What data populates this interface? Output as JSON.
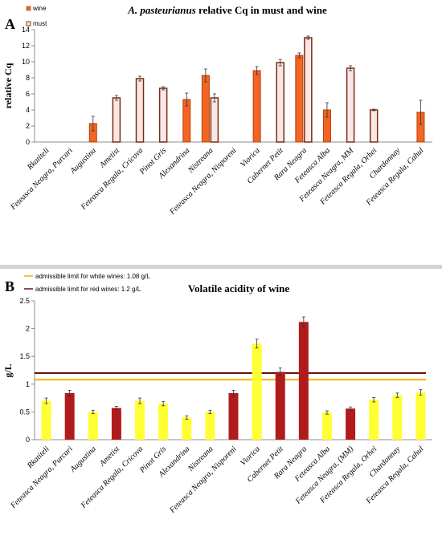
{
  "colors": {
    "wine": "#f26522",
    "wine_edge": "#b5400c",
    "must": "#fbe6ea",
    "must_edge": "#7a2e0e",
    "white_wine_bar": "#ffff33",
    "red_wine_bar": "#b01c1c",
    "white_limit": "#f0b400",
    "red_limit": "#6a1010",
    "axis": "#8c8c8c"
  },
  "chart_data": [
    {
      "panel_label": "A",
      "type": "bar",
      "title_italic": "A. pasteurianus",
      "title_rest": " relative Cq in must and wine",
      "ylabel": "relative Cq",
      "ylim": [
        0,
        14
      ],
      "yticks": [
        "0",
        "2",
        "4",
        "6",
        "8",
        "10",
        "12",
        "14"
      ],
      "legend": {
        "placement": "top-left",
        "wine": "wine",
        "must": "must"
      },
      "categories": [
        "Rkatiteli",
        "Feteasca Neagra, Purcari",
        "Augustina",
        "Ametist",
        "Feteasca Regala, Cricova",
        "Pinot Gris",
        "Alexandrina",
        "Nistreana",
        "Feteasca Neagra, Nisporeni",
        "Viorica",
        "Cabernet Petit",
        "Rara Neagra",
        "Feteasca Alba",
        "Feteasca Neagra, MM",
        "Feteasca Regala, Orhei",
        "Chardonnay",
        "Feteasca Regala, Cahul"
      ],
      "series": [
        {
          "name": "wine",
          "values": [
            null,
            null,
            2.3,
            null,
            null,
            null,
            5.3,
            8.3,
            null,
            8.9,
            null,
            10.8,
            4.0,
            null,
            null,
            null,
            3.7
          ],
          "errors": [
            null,
            null,
            0.9,
            null,
            null,
            null,
            0.8,
            0.8,
            null,
            0.5,
            null,
            0.3,
            0.9,
            null,
            null,
            null,
            1.5
          ]
        },
        {
          "name": "must",
          "values": [
            null,
            null,
            null,
            5.5,
            7.9,
            6.7,
            null,
            5.5,
            null,
            null,
            9.9,
            13.0,
            null,
            9.2,
            4.0,
            null,
            null
          ],
          "errors": [
            null,
            null,
            null,
            0.3,
            0.3,
            0.2,
            null,
            0.5,
            null,
            null,
            0.4,
            0.2,
            null,
            0.3,
            0.1,
            null,
            null
          ]
        }
      ]
    },
    {
      "panel_label": "B",
      "type": "bar",
      "title": "Volatile acidity of wine",
      "ylabel": "g/L",
      "ylim": [
        0,
        2.5
      ],
      "yticks": [
        "0",
        "0.5",
        "1",
        "1.5",
        "2",
        "2.5"
      ],
      "legend": {
        "placement": "top-left",
        "white_limit": "admissible limit for white wines: 1.08 g/L",
        "red_limit": "admissible limit for red wines: 1.2 g/L"
      },
      "limits": {
        "white": 1.08,
        "red": 1.2
      },
      "categories": [
        "Rkatiteli",
        "Feteasca Neagra, Purcari",
        "Augustina",
        "Ametist",
        "Feteasca Regala, Cricova",
        "Pinot Gris",
        "Alexandrina",
        "Nistreana",
        "Feteasca Neagra, Nisporeni",
        "Viorica",
        "Cabernet Petit",
        "Rara Neagra",
        "Feteasca Alba",
        "Feteasca Neagra, (MM)",
        "Feteasca Regala, Orhei",
        "Chardonnay",
        "Feteasca Regala, Cahul"
      ],
      "wine_type": [
        "white",
        "red",
        "white",
        "red",
        "white",
        "white",
        "white",
        "white",
        "red",
        "white",
        "red",
        "red",
        "white",
        "red",
        "white",
        "white",
        "white"
      ],
      "values": [
        0.7,
        0.84,
        0.5,
        0.57,
        0.7,
        0.65,
        0.4,
        0.5,
        0.84,
        1.73,
        1.22,
        2.12,
        0.49,
        0.56,
        0.72,
        0.8,
        0.85
      ],
      "errors": [
        0.05,
        0.05,
        0.03,
        0.03,
        0.05,
        0.04,
        0.03,
        0.03,
        0.05,
        0.08,
        0.07,
        0.09,
        0.03,
        0.03,
        0.04,
        0.04,
        0.05
      ]
    }
  ]
}
